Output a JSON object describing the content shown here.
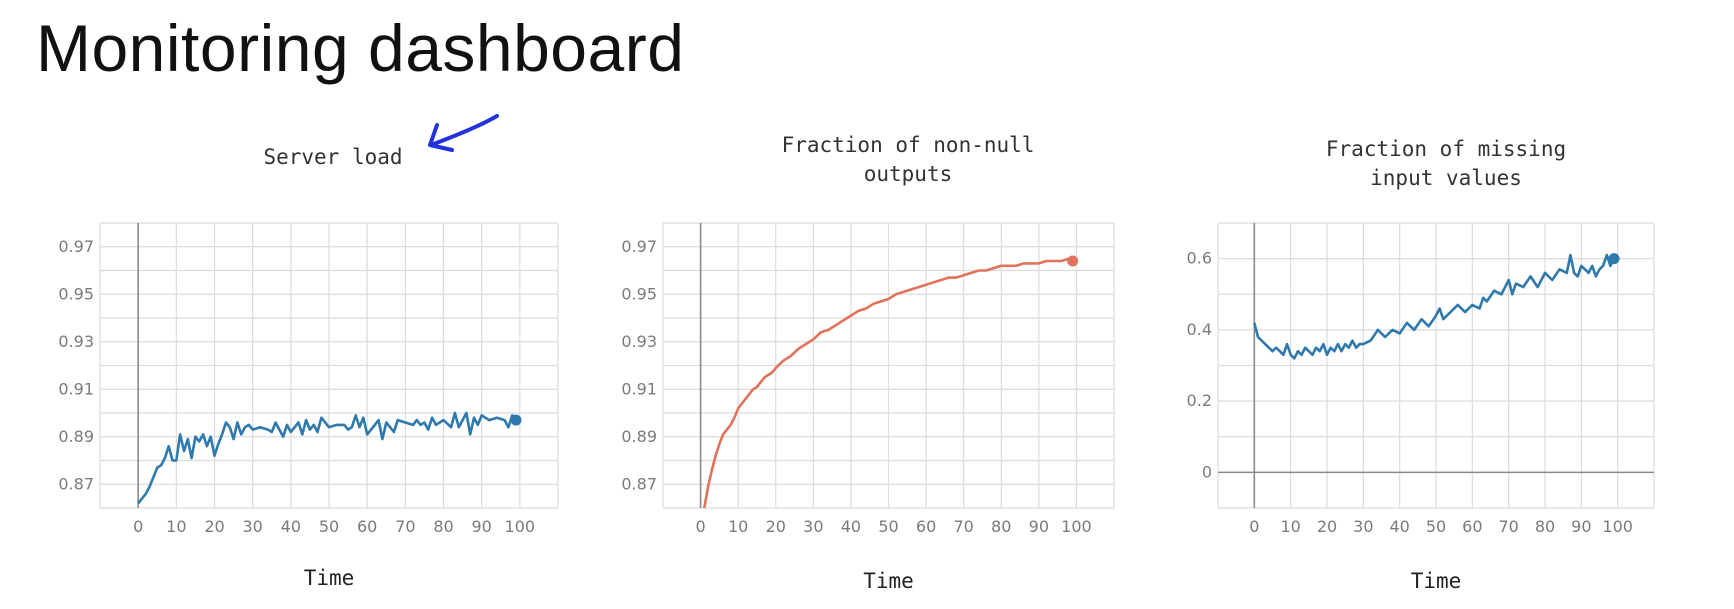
{
  "page": {
    "title": "Monitoring dashboard"
  },
  "annotation": {
    "icon": "arrow-pointing-left-icon",
    "color": "#2233dd"
  },
  "chart_data": [
    {
      "id": "server-load",
      "type": "line",
      "title_lines": [
        "Server load"
      ],
      "xlabel": "Time",
      "ylabel": "",
      "xlim": [
        -10,
        110
      ],
      "ylim": [
        0.86,
        0.98
      ],
      "xticks": [
        0,
        10,
        20,
        30,
        40,
        50,
        60,
        70,
        80,
        90,
        100
      ],
      "yticks": [
        0.87,
        0.89,
        0.91,
        0.93,
        0.95,
        0.97
      ],
      "ytick_labels": [
        "0.87",
        "0.89",
        "0.91",
        "0.93",
        "0.95",
        "0.97"
      ],
      "grid": true,
      "series": [
        {
          "color": "#2f79ad",
          "end_marker": true,
          "x": [
            0,
            2,
            3,
            5,
            6,
            7,
            8,
            9,
            10,
            11,
            12,
            13,
            14,
            15,
            16,
            17,
            18,
            19,
            20,
            21,
            22,
            23,
            24,
            25,
            26,
            27,
            28,
            29,
            30,
            32,
            34,
            35,
            36,
            38,
            39,
            40,
            42,
            43,
            44,
            45,
            46,
            47,
            48,
            50,
            52,
            54,
            55,
            56,
            57,
            58,
            59,
            60,
            62,
            63,
            64,
            65,
            66,
            67,
            68,
            70,
            72,
            73,
            74,
            75,
            76,
            77,
            78,
            80,
            82,
            83,
            84,
            85,
            86,
            87,
            88,
            89,
            90,
            92,
            94,
            96,
            97,
            98,
            99
          ],
          "y": [
            0.862,
            0.866,
            0.869,
            0.877,
            0.878,
            0.881,
            0.886,
            0.88,
            0.88,
            0.891,
            0.884,
            0.889,
            0.881,
            0.89,
            0.888,
            0.891,
            0.886,
            0.89,
            0.882,
            0.887,
            0.891,
            0.896,
            0.894,
            0.889,
            0.896,
            0.891,
            0.894,
            0.895,
            0.893,
            0.894,
            0.893,
            0.892,
            0.896,
            0.89,
            0.895,
            0.892,
            0.896,
            0.891,
            0.897,
            0.893,
            0.895,
            0.892,
            0.898,
            0.894,
            0.895,
            0.895,
            0.893,
            0.894,
            0.899,
            0.894,
            0.898,
            0.891,
            0.895,
            0.897,
            0.889,
            0.896,
            0.894,
            0.892,
            0.897,
            0.896,
            0.895,
            0.897,
            0.895,
            0.896,
            0.893,
            0.898,
            0.895,
            0.897,
            0.894,
            0.9,
            0.894,
            0.897,
            0.9,
            0.891,
            0.898,
            0.895,
            0.899,
            0.897,
            0.898,
            0.897,
            0.894,
            0.899,
            0.897
          ]
        }
      ]
    },
    {
      "id": "fraction-non-null",
      "type": "line",
      "title_lines": [
        "Fraction of non-null",
        "outputs"
      ],
      "xlabel": "Time",
      "ylabel": "",
      "xlim": [
        -10,
        110
      ],
      "ylim": [
        0.86,
        0.98
      ],
      "xticks": [
        0,
        10,
        20,
        30,
        40,
        50,
        60,
        70,
        80,
        90,
        100
      ],
      "yticks": [
        0.87,
        0.89,
        0.91,
        0.93,
        0.95,
        0.97
      ],
      "ytick_labels": [
        "0.87",
        "0.89",
        "0.91",
        "0.93",
        "0.95",
        "0.97"
      ],
      "grid": true,
      "series": [
        {
          "color": "#e0735a",
          "end_marker": true,
          "x": [
            1,
            2,
            3,
            4,
            5,
            6,
            7,
            8,
            9,
            10,
            11,
            12,
            13,
            14,
            15,
            16,
            17,
            18,
            19,
            20,
            22,
            24,
            26,
            28,
            30,
            32,
            34,
            36,
            38,
            40,
            42,
            44,
            46,
            48,
            50,
            52,
            54,
            56,
            58,
            60,
            62,
            64,
            66,
            68,
            70,
            72,
            74,
            76,
            78,
            80,
            82,
            84,
            86,
            88,
            90,
            92,
            94,
            96,
            98,
            99
          ],
          "y": [
            0.86,
            0.869,
            0.876,
            0.882,
            0.887,
            0.891,
            0.893,
            0.895,
            0.898,
            0.902,
            0.904,
            0.906,
            0.908,
            0.91,
            0.911,
            0.913,
            0.915,
            0.916,
            0.917,
            0.919,
            0.922,
            0.924,
            0.927,
            0.929,
            0.931,
            0.934,
            0.935,
            0.937,
            0.939,
            0.941,
            0.943,
            0.944,
            0.946,
            0.947,
            0.948,
            0.95,
            0.951,
            0.952,
            0.953,
            0.954,
            0.955,
            0.956,
            0.957,
            0.957,
            0.958,
            0.959,
            0.96,
            0.96,
            0.961,
            0.962,
            0.962,
            0.962,
            0.963,
            0.963,
            0.963,
            0.964,
            0.964,
            0.964,
            0.965,
            0.964
          ]
        }
      ]
    },
    {
      "id": "fraction-missing",
      "type": "line",
      "title_lines": [
        "Fraction of missing",
        "input values"
      ],
      "xlabel": "Time",
      "ylabel": "",
      "xlim": [
        -10,
        110
      ],
      "ylim": [
        -0.1,
        0.7
      ],
      "xticks": [
        0,
        10,
        20,
        30,
        40,
        50,
        60,
        70,
        80,
        90,
        100
      ],
      "yticks": [
        0,
        0.2,
        0.4,
        0.6
      ],
      "ytick_labels": [
        "0",
        "0.2",
        "0.4",
        "0.6"
      ],
      "grid": true,
      "series": [
        {
          "color": "#2f79ad",
          "end_marker": true,
          "x": [
            0,
            1,
            2,
            3,
            4,
            5,
            6,
            7,
            8,
            9,
            10,
            11,
            12,
            13,
            14,
            15,
            16,
            17,
            18,
            19,
            20,
            21,
            22,
            23,
            24,
            25,
            26,
            27,
            28,
            29,
            30,
            32,
            34,
            36,
            38,
            40,
            42,
            44,
            46,
            48,
            50,
            51,
            52,
            54,
            56,
            58,
            60,
            62,
            63,
            64,
            66,
            68,
            70,
            71,
            72,
            74,
            76,
            78,
            80,
            82,
            84,
            86,
            87,
            88,
            89,
            90,
            92,
            93,
            94,
            95,
            96,
            97,
            98,
            99
          ],
          "y": [
            0.42,
            0.38,
            0.37,
            0.36,
            0.35,
            0.34,
            0.35,
            0.34,
            0.33,
            0.36,
            0.33,
            0.32,
            0.34,
            0.33,
            0.35,
            0.34,
            0.33,
            0.35,
            0.34,
            0.36,
            0.33,
            0.35,
            0.34,
            0.36,
            0.34,
            0.36,
            0.35,
            0.37,
            0.35,
            0.36,
            0.36,
            0.37,
            0.4,
            0.38,
            0.4,
            0.39,
            0.42,
            0.4,
            0.43,
            0.41,
            0.44,
            0.46,
            0.43,
            0.45,
            0.47,
            0.45,
            0.47,
            0.46,
            0.49,
            0.48,
            0.51,
            0.5,
            0.54,
            0.5,
            0.53,
            0.52,
            0.55,
            0.52,
            0.56,
            0.54,
            0.57,
            0.56,
            0.61,
            0.56,
            0.55,
            0.58,
            0.56,
            0.58,
            0.55,
            0.57,
            0.58,
            0.61,
            0.58,
            0.6
          ]
        }
      ]
    }
  ]
}
